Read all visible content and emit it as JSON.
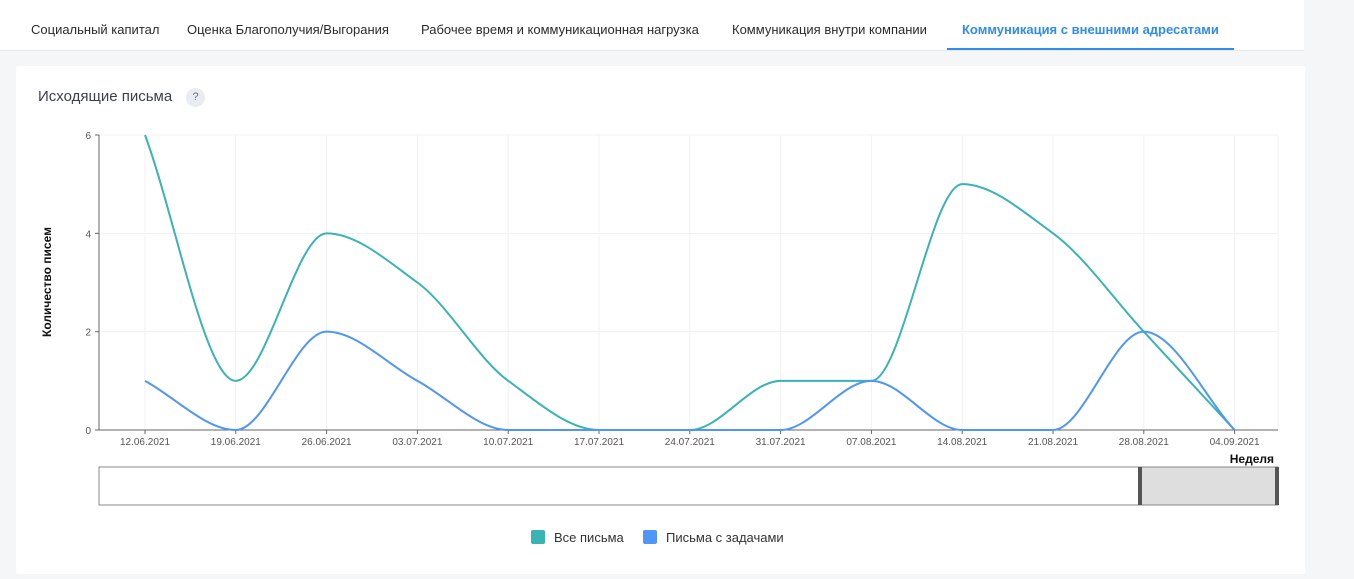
{
  "tabs": [
    {
      "label": "Социальный капитал",
      "active": false
    },
    {
      "label": "Оценка Благополучия/Выгорания",
      "active": false
    },
    {
      "label": "Рабочее время и коммуникационная нагрузка",
      "active": false
    },
    {
      "label": "Коммуникация внутри компании",
      "active": false
    },
    {
      "label": "Коммуникация с внешними адресатами",
      "active": true
    }
  ],
  "card": {
    "title": "Исходящие письма",
    "help_icon": "?"
  },
  "colors": {
    "accent": "#2f8cf0",
    "series_all": "#3ab3b5",
    "series_tasks": "#4f96f7"
  },
  "chart_data": {
    "type": "line",
    "title": "Исходящие письма",
    "xlabel": "Неделя",
    "ylabel": "Количество писем",
    "ylim": [
      0,
      6
    ],
    "yticks": [
      0,
      2,
      4,
      6
    ],
    "grid": true,
    "legend_position": "bottom-center",
    "categories": [
      "12.06.2021",
      "19.06.2021",
      "26.06.2021",
      "03.07.2021",
      "10.07.2021",
      "17.07.2021",
      "24.07.2021",
      "31.07.2021",
      "07.08.2021",
      "14.08.2021",
      "21.08.2021",
      "28.08.2021",
      "04.09.2021"
    ],
    "series": [
      {
        "name": "Все письма",
        "color": "#3ab3b5",
        "values": [
          6,
          1,
          4,
          3,
          1,
          0,
          0,
          1,
          1,
          5,
          4,
          2,
          0
        ]
      },
      {
        "name": "Письма с задачами",
        "color": "#4f96f7",
        "values": [
          1,
          0,
          2,
          1,
          0,
          0,
          0,
          0,
          1,
          0,
          0,
          2,
          0
        ]
      }
    ]
  }
}
